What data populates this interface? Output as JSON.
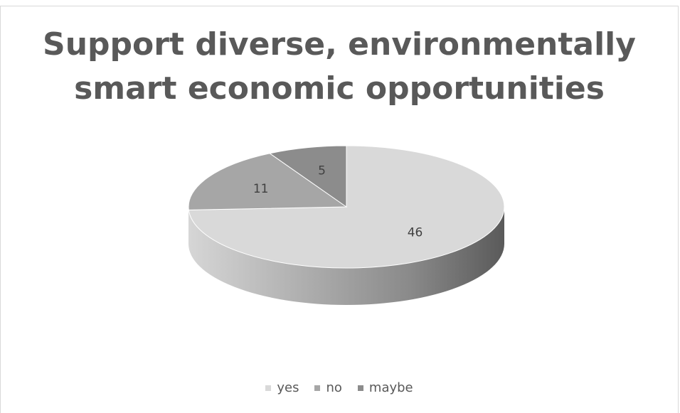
{
  "chart_data": {
    "type": "pie",
    "style": "3d",
    "title": "Support diverse, environmentally smart economic opportunities",
    "title_lines": [
      "Support diverse, environmentally",
      "smart economic opportunities"
    ],
    "categories": [
      "yes",
      "no",
      "maybe"
    ],
    "values": [
      46,
      11,
      5
    ],
    "data_labels": [
      "46",
      "11",
      "5"
    ],
    "colors": [
      "#d9d9d9",
      "#a6a6a6",
      "#8c8c8c"
    ],
    "side_colors": [
      "#7f7f7f",
      "#9a9a9a",
      "#6f6f6f"
    ],
    "legend": {
      "position": "bottom",
      "entries": [
        "yes",
        "no",
        "maybe"
      ]
    }
  }
}
